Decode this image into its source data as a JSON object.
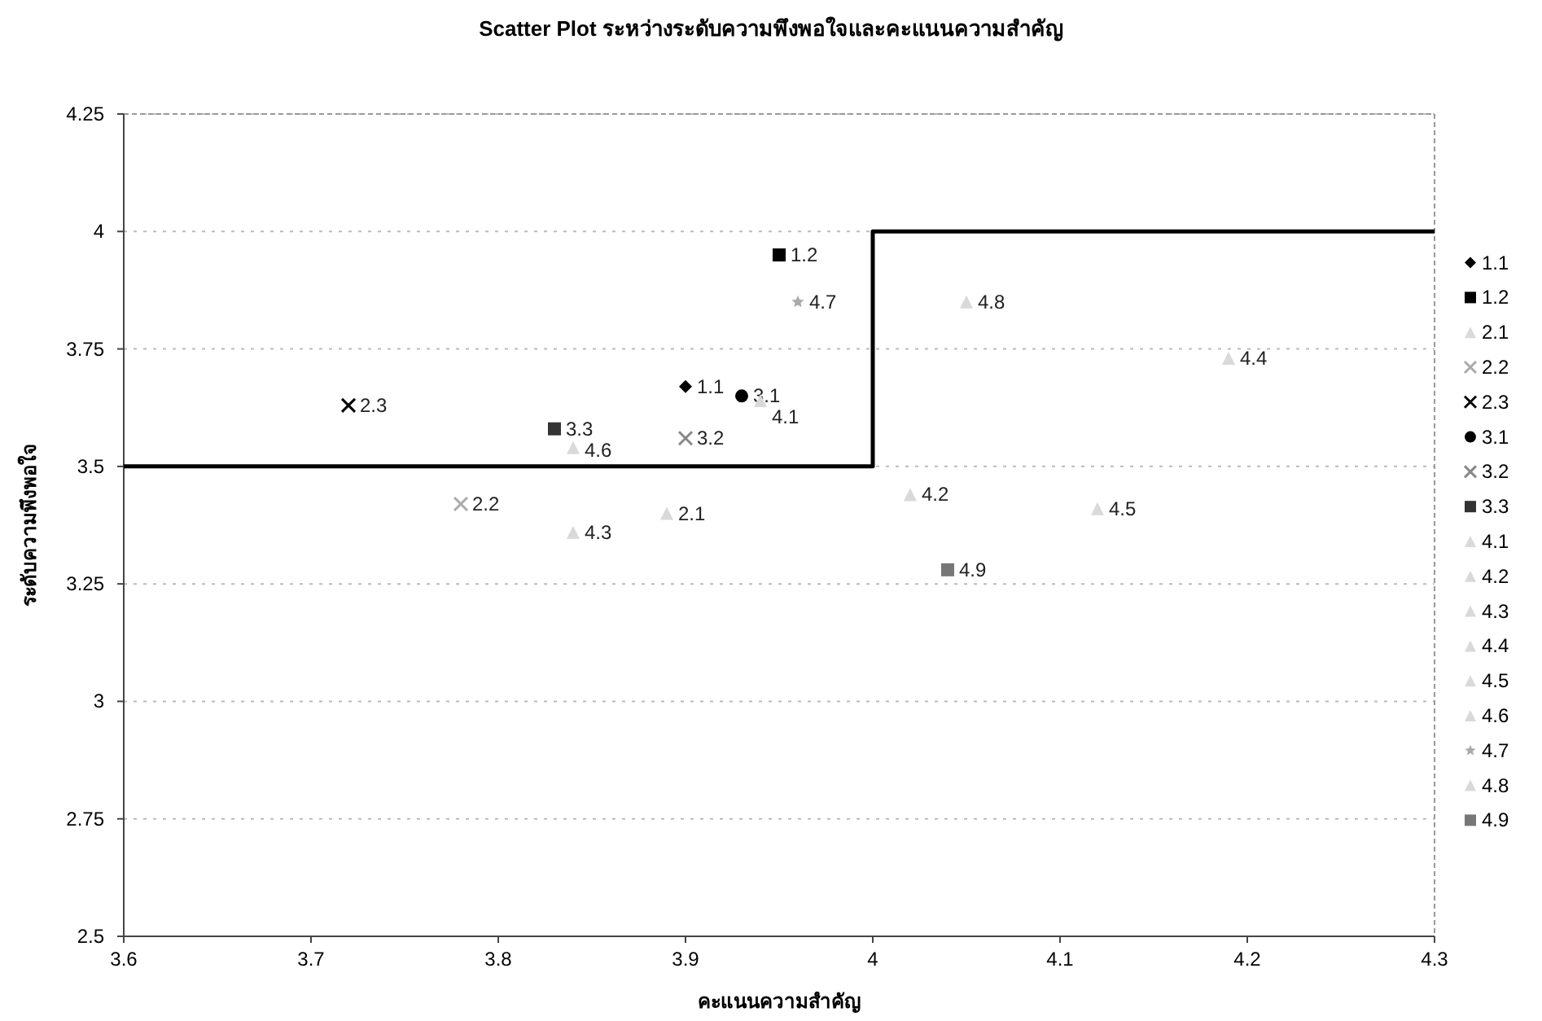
{
  "chart_data": {
    "type": "scatter",
    "title": "Scatter Plot ระหว่างระดับความพึงพอใจและคะแนนความสำคัญ",
    "xlabel": "คะแนนความสำคัญ",
    "ylabel": "ระดับความพึงพอใจ",
    "xlim": [
      3.6,
      4.3
    ],
    "xticks": [
      3.6,
      3.7,
      3.8,
      3.9,
      4,
      4.1,
      4.2,
      4.3
    ],
    "ylim": [
      2.5,
      4.25
    ],
    "yticks": [
      2.5,
      2.75,
      3,
      3.25,
      3.5,
      3.75,
      4,
      4.25
    ],
    "grid": "y",
    "legend": "right",
    "series": [
      {
        "name": "1.1",
        "color": "#000000",
        "marker": "diamond",
        "x": [
          3.9
        ],
        "values": [
          3.67
        ]
      },
      {
        "name": "1.2",
        "color": "#000000",
        "marker": "square",
        "x": [
          3.95
        ],
        "values": [
          3.95
        ]
      },
      {
        "name": "2.1",
        "color": "#d9d9d9",
        "marker": "triangle",
        "x": [
          3.89
        ],
        "values": [
          3.4
        ]
      },
      {
        "name": "2.2",
        "color": "#aaaaaa",
        "marker": "cross",
        "x": [
          3.78
        ],
        "values": [
          3.42
        ]
      },
      {
        "name": "2.3",
        "color": "#000000",
        "marker": "cross",
        "x": [
          3.72
        ],
        "values": [
          3.63
        ]
      },
      {
        "name": "3.1",
        "color": "#000000",
        "marker": "circle",
        "x": [
          3.93
        ],
        "values": [
          3.65
        ]
      },
      {
        "name": "3.2",
        "color": "#888888",
        "marker": "cross",
        "x": [
          3.9
        ],
        "values": [
          3.56
        ]
      },
      {
        "name": "3.3",
        "color": "#333333",
        "marker": "square",
        "x": [
          3.83
        ],
        "values": [
          3.58
        ]
      },
      {
        "name": "4.1",
        "color": "#d9d9d9",
        "marker": "triangle",
        "x": [
          3.94
        ],
        "values": [
          3.64
        ]
      },
      {
        "name": "4.2",
        "color": "#d9d9d9",
        "marker": "triangle",
        "x": [
          4.02
        ],
        "values": [
          3.44
        ]
      },
      {
        "name": "4.3",
        "color": "#d9d9d9",
        "marker": "triangle",
        "x": [
          3.84
        ],
        "values": [
          3.36
        ]
      },
      {
        "name": "4.4",
        "color": "#d9d9d9",
        "marker": "triangle",
        "x": [
          4.19
        ],
        "values": [
          3.73
        ]
      },
      {
        "name": "4.5",
        "color": "#d9d9d9",
        "marker": "triangle",
        "x": [
          4.12
        ],
        "values": [
          3.41
        ]
      },
      {
        "name": "4.6",
        "color": "#d9d9d9",
        "marker": "triangle",
        "x": [
          3.84
        ],
        "values": [
          3.54
        ]
      },
      {
        "name": "4.7",
        "color": "#aaaaaa",
        "marker": "star",
        "x": [
          3.96
        ],
        "values": [
          3.85
        ]
      },
      {
        "name": "4.8",
        "color": "#d9d9d9",
        "marker": "triangle",
        "x": [
          4.05
        ],
        "values": [
          3.85
        ]
      },
      {
        "name": "4.9",
        "color": "#777777",
        "marker": "square",
        "x": [
          4.04
        ],
        "values": [
          3.28
        ]
      },
      {
        "type": "step",
        "color": "#000000",
        "marker": "none",
        "x": [
          3.6,
          4.0,
          4.3
        ],
        "values": [
          3.5,
          4,
          4
        ]
      }
    ]
  }
}
